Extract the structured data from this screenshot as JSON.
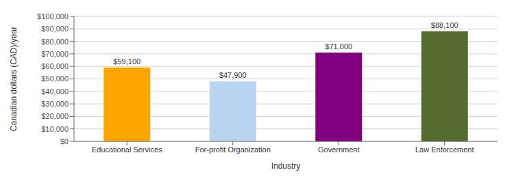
{
  "chart_data": {
    "type": "bar",
    "categories": [
      "Educational Services",
      "For-profit Organization",
      "Government",
      "Law Enforcement"
    ],
    "values": [
      59100,
      47900,
      71000,
      88100
    ],
    "value_labels": [
      "$59,100",
      "$47,900",
      "$71,000",
      "$88,100"
    ],
    "colors": [
      "#FFA500",
      "#B8D4F0",
      "#800080",
      "#556B2F"
    ],
    "xlabel": "Industry",
    "ylabel": "Canadian dollars (CAD)/year",
    "ylim": [
      0,
      100000
    ],
    "yticks": [
      {
        "value": 0,
        "label": "$0"
      },
      {
        "value": 10000,
        "label": "$10,000"
      },
      {
        "value": 20000,
        "label": "$20,000"
      },
      {
        "value": 30000,
        "label": "$30,000"
      },
      {
        "value": 40000,
        "label": "$40,000"
      },
      {
        "value": 50000,
        "label": "$50,000"
      },
      {
        "value": 60000,
        "label": "$60,000"
      },
      {
        "value": 70000,
        "label": "$70,000"
      },
      {
        "value": 80000,
        "label": "$80,000"
      },
      {
        "value": 90000,
        "label": "$90,000"
      },
      {
        "value": 100000,
        "label": "$100,000"
      }
    ],
    "grid": true,
    "data_labels": true
  }
}
